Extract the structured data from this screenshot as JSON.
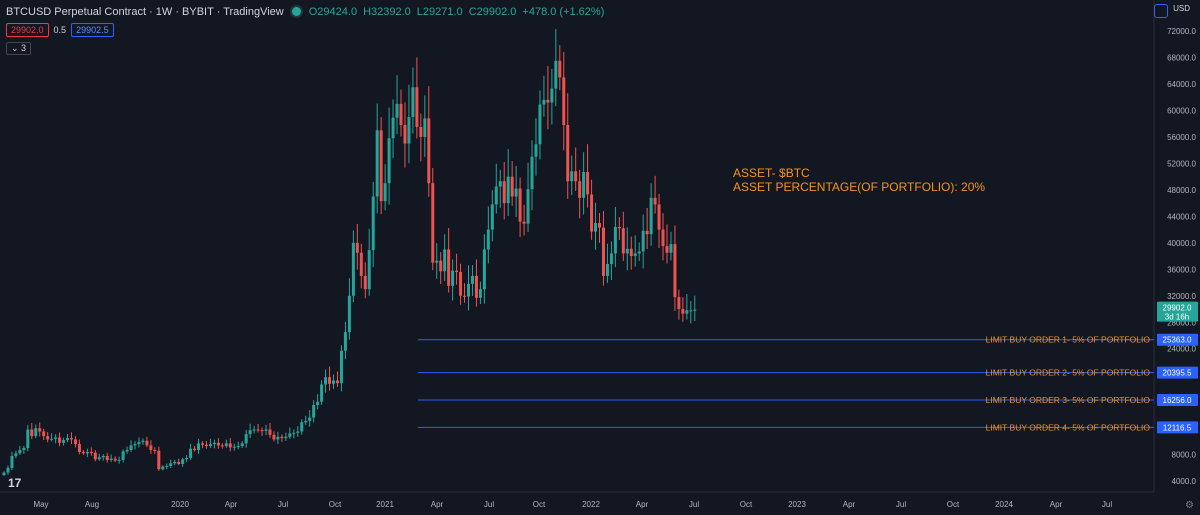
{
  "header": {
    "title": "BTCUSD Perpetual Contract · 1W · BYBIT · TradingView",
    "open": "O29424.0",
    "high": "H32392.0",
    "low": "L29271.0",
    "close": "C29902.0",
    "change": "+478.0 (+1.62%)"
  },
  "indicator": {
    "bid": "29902.0",
    "mid": "0.5",
    "ask": "29902.5"
  },
  "indicator_count": "3",
  "currency": "USD",
  "logo_text": "17",
  "colors": {
    "background": "#131722",
    "up": "#26a69a",
    "down": "#ef5350",
    "line": "#2962ff",
    "text_orange": "#f7931a",
    "axis_text": "#b2b5be"
  },
  "chart_data": {
    "type": "candlestick",
    "title": "BTCUSD Perpetual Contract · 1W · BYBIT",
    "y_axis": {
      "side": "right",
      "ylim": [
        1000,
        74000
      ],
      "ticks": [
        4000,
        8000,
        12000,
        16000,
        20000,
        24000,
        28000,
        32000,
        36000,
        40000,
        44000,
        48000,
        52000,
        56000,
        60000,
        64000,
        68000,
        72000
      ],
      "tick_labels": [
        "4000.0",
        "8000.0",
        "12000.0",
        "16000.0",
        "20000.0",
        "24000.0",
        "28000.0",
        "32000.0",
        "36000.0",
        "40000.0",
        "44000.0",
        "48000.0",
        "52000.0",
        "56000.0",
        "60000.0",
        "64000.0",
        "68000.0",
        "72000.0"
      ]
    },
    "x_axis": {
      "labels": [
        "May",
        "Aug",
        "2020",
        "Apr",
        "Jul",
        "Oct",
        "2021",
        "Apr",
        "Jul",
        "Oct",
        "2022",
        "Apr",
        "Jul",
        "Oct",
        "2023",
        "Apr",
        "Jul",
        "Oct",
        "2024",
        "Apr",
        "Jul"
      ]
    },
    "weekly_closes": [
      5300,
      6000,
      7800,
      8200,
      8700,
      9000,
      11800,
      10800,
      12000,
      11500,
      10800,
      10300,
      10400,
      10600,
      9800,
      10200,
      10500,
      10300,
      9600,
      8400,
      8200,
      8400,
      8300,
      7300,
      7600,
      7800,
      7200,
      7400,
      7100,
      7200,
      8500,
      8700,
      9400,
      9600,
      9900,
      10100,
      9400,
      8700,
      8600,
      5800,
      6200,
      6300,
      6700,
      6900,
      6600,
      7300,
      7500,
      8900,
      8700,
      9700,
      9500,
      9300,
      9600,
      9800,
      9400,
      9300,
      9700,
      9100,
      9200,
      9300,
      9700,
      11100,
      11700,
      11800,
      11700,
      11600,
      11800,
      11000,
      10300,
      10700,
      10500,
      10700,
      11200,
      11300,
      11500,
      12900,
      13100,
      13600,
      15500,
      16000,
      18600,
      19700,
      18700,
      19200,
      18800,
      23700,
      26500,
      32000,
      40000,
      38500,
      35000,
      33000,
      38900,
      47000,
      57000,
      46300,
      49000,
      55800,
      58900,
      61000,
      57800,
      55000,
      59000,
      63500,
      57500,
      56000,
      58800,
      49000,
      37000,
      37300,
      35700,
      39000,
      33500,
      35800,
      35600,
      32000,
      31900,
      33800,
      35000,
      31700,
      33000,
      39000,
      42000,
      45800,
      48500,
      49300,
      46000,
      50000,
      47000,
      48200,
      43200,
      42900,
      48100,
      53000,
      54900,
      60900,
      61600,
      61200,
      63300,
      67500,
      65000,
      57800,
      49300,
      50800,
      49300,
      46800,
      50700,
      47300,
      41700,
      43000,
      42300,
      35000,
      36800,
      38400,
      42400,
      42200,
      38400,
      39100,
      38000,
      38400,
      38700,
      41800,
      41300,
      46800,
      45800,
      42000,
      39500,
      38500,
      39800,
      31800,
      30000,
      29300,
      29800,
      29800,
      29902
    ],
    "latest": {
      "value": 29902.0,
      "label": "29902.0",
      "countdown": "3d 16h"
    },
    "horizontal_lines": [
      {
        "value": 25363.0,
        "label": "25363.0",
        "text": "LIMIT BUY ORDER 1- 5% OF PORTFOLIO"
      },
      {
        "value": 20395.5,
        "label": "20395.5",
        "text": "LIMIT BUY ORDER 2- 5% OF PORTFOLIO"
      },
      {
        "value": 16256.0,
        "label": "16256.0",
        "text": "LIMIT BUY ORDER 3- 5% OF PORTFOLIO"
      },
      {
        "value": 12116.5,
        "label": "12116.5",
        "text": "LIMIT BUY ORDER 4- 5% OF PORTFOLIO"
      }
    ],
    "annotation": {
      "line1": "ASSET- $BTC",
      "line2": "ASSET PERCENTAGE(OF PORTFOLIO): 20%"
    },
    "grid": false
  }
}
